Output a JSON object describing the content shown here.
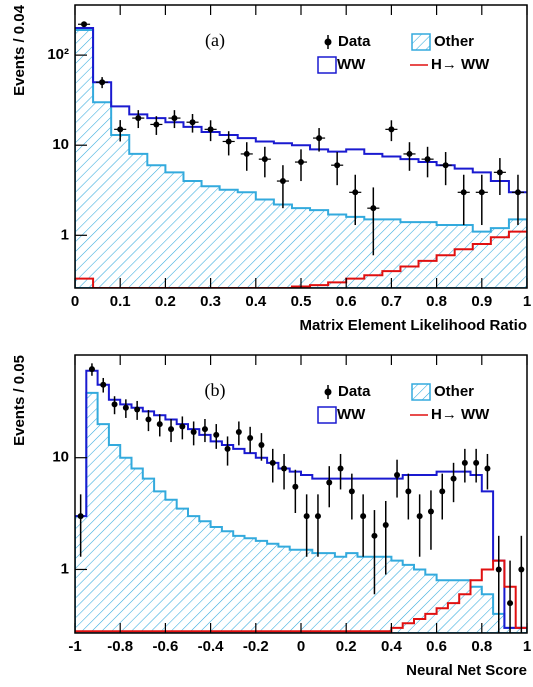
{
  "chart_data": [
    {
      "type": "histogram",
      "panel_label": "(a)",
      "xlabel": "Matrix Element Likelihood Ratio",
      "ylabel": "Events / 0.04",
      "log_y": true,
      "bins": [
        0,
        0.04,
        0.08,
        0.12,
        0.16,
        0.2,
        0.24,
        0.28,
        0.32,
        0.36,
        0.4,
        0.44,
        0.48,
        0.52,
        0.56,
        0.6,
        0.64,
        0.68,
        0.72,
        0.76,
        0.8,
        0.84,
        0.88,
        0.92,
        0.96,
        1
      ],
      "xlim": [
        0,
        1
      ],
      "ylim": [
        0.26,
        360
      ],
      "xticks": [
        0,
        0.1,
        0.2,
        0.3,
        0.4,
        0.5,
        0.6,
        0.7,
        0.8,
        0.9,
        1
      ],
      "yticks": [
        1,
        10,
        {
          "value": 100,
          "label": "10²"
        }
      ],
      "series": [
        {
          "name": "Data",
          "color": "#000000",
          "values": [
            220,
            50,
            15,
            20,
            17,
            20,
            18,
            15,
            11,
            8,
            7,
            4,
            6.5,
            12,
            6,
            3,
            2,
            15,
            8,
            7,
            6,
            3,
            3,
            5,
            3
          ],
          "errors": [
            15,
            7,
            4,
            4.5,
            4,
            4.5,
            4.2,
            3.9,
            3.3,
            2.8,
            2.6,
            2,
            2.5,
            3.5,
            2.4,
            1.7,
            1.4,
            3.9,
            2.8,
            2.6,
            2.4,
            1.7,
            1.7,
            2.2,
            1.7
          ]
        },
        {
          "name": "Other",
          "color": "#33aadd",
          "values": [
            190,
            30,
            13,
            8,
            6,
            5,
            4,
            3.5,
            3.2,
            3,
            2.5,
            2.2,
            2,
            1.9,
            1.7,
            1.6,
            1.5,
            1.5,
            1.4,
            1.4,
            1.3,
            1.3,
            1.1,
            1.2,
            1.5
          ]
        },
        {
          "name": "WW",
          "color": "#1a1ad0",
          "values": [
            200,
            50,
            27,
            22,
            20,
            18,
            16,
            14,
            13,
            12,
            11,
            10.5,
            10,
            9,
            8.5,
            9,
            8,
            7.5,
            7,
            6.5,
            6,
            5.5,
            5,
            4,
            3
          ]
        },
        {
          "name": "H→ WW",
          "color": "#e01010",
          "values": [
            0.33,
            0.25,
            0.25,
            0.25,
            0.25,
            0.25,
            0.25,
            0.25,
            0.25,
            0.25,
            0.25,
            0.25,
            0.27,
            0.28,
            0.3,
            0.33,
            0.36,
            0.4,
            0.45,
            0.52,
            0.6,
            0.7,
            0.8,
            0.95,
            1.1
          ]
        }
      ]
    },
    {
      "type": "histogram",
      "panel_label": "(b)",
      "xlabel": "Neural Net Score",
      "ylabel": "Events / 0.05",
      "log_y": true,
      "bins": [
        -1,
        -0.95,
        -0.9,
        -0.85,
        -0.8,
        -0.75,
        -0.7,
        -0.65,
        -0.6,
        -0.55,
        -0.5,
        -0.45,
        -0.4,
        -0.35,
        -0.3,
        -0.25,
        -0.2,
        -0.15,
        -0.1,
        -0.05,
        0,
        0.05,
        0.1,
        0.15,
        0.2,
        0.25,
        0.3,
        0.35,
        0.4,
        0.45,
        0.5,
        0.55,
        0.6,
        0.65,
        0.7,
        0.75,
        0.8,
        0.85,
        0.9,
        0.95,
        1
      ],
      "xlim": [
        -1,
        1
      ],
      "ylim": [
        0.27,
        83
      ],
      "xticks": [
        -1,
        -0.8,
        -0.6,
        -0.4,
        -0.2,
        0,
        0.2,
        0.4,
        0.6,
        0.8,
        1
      ],
      "yticks": [
        1,
        10
      ],
      "series": [
        {
          "name": "Data",
          "color": "#000000",
          "values": [
            3,
            62,
            45,
            30,
            28,
            27,
            22,
            20,
            18,
            19,
            17,
            18,
            16,
            12,
            17,
            15,
            13,
            9,
            8,
            5.5,
            3,
            3,
            6,
            8,
            5,
            3,
            2,
            2.5,
            7,
            5,
            3,
            3.3,
            5,
            6.5,
            9,
            9,
            8,
            1,
            0.5,
            1
          ],
          "errors": [
            1.7,
            7.9,
            6.7,
            5.5,
            5.3,
            5.2,
            4.7,
            4.5,
            4.2,
            4.4,
            4.1,
            4.2,
            4,
            3.5,
            4.1,
            3.9,
            3.6,
            3,
            2.8,
            2.3,
            1.7,
            1.7,
            2.4,
            2.8,
            2.2,
            1.7,
            1.4,
            1.6,
            2.6,
            2.2,
            1.7,
            1.8,
            2.2,
            2.5,
            3,
            3,
            2.8,
            1,
            0.7,
            1
          ]
        },
        {
          "name": "Other",
          "color": "#33aadd",
          "values": [
            3,
            38,
            20,
            13,
            10,
            8,
            6.5,
            5,
            4.2,
            3.5,
            3,
            2.7,
            2.4,
            2.2,
            2,
            1.9,
            1.8,
            1.7,
            1.6,
            1.5,
            1.5,
            1.4,
            1.4,
            1.3,
            1.4,
            1.3,
            1.3,
            1.3,
            1.2,
            1.1,
            1.0,
            0.9,
            0.8,
            0.8,
            0.8,
            0.7,
            0.6,
            0.4,
            0.3,
            0.3
          ]
        },
        {
          "name": "WW",
          "color": "#1a1ad0",
          "values": [
            3,
            60,
            45,
            33,
            30,
            28,
            26,
            24,
            22,
            20,
            18,
            16,
            14,
            13,
            12,
            11,
            10,
            9,
            8,
            7.5,
            7,
            6.5,
            6.5,
            6.5,
            6.5,
            6.5,
            6.5,
            6.5,
            6.5,
            7,
            7,
            7,
            7.5,
            7.5,
            7.5,
            7,
            5,
            1.2,
            0.3,
            0.3
          ]
        },
        {
          "name": "H→ WW",
          "color": "#e01010",
          "values": [
            0.28,
            0.28,
            0.28,
            0.28,
            0.28,
            0.28,
            0.28,
            0.28,
            0.28,
            0.28,
            0.28,
            0.28,
            0.28,
            0.28,
            0.28,
            0.28,
            0.28,
            0.28,
            0.28,
            0.28,
            0.28,
            0.28,
            0.28,
            0.28,
            0.28,
            0.28,
            0.28,
            0.28,
            0.3,
            0.33,
            0.36,
            0.4,
            0.45,
            0.5,
            0.6,
            0.8,
            1.0,
            1.2,
            0.7,
            0.3
          ]
        }
      ]
    }
  ]
}
